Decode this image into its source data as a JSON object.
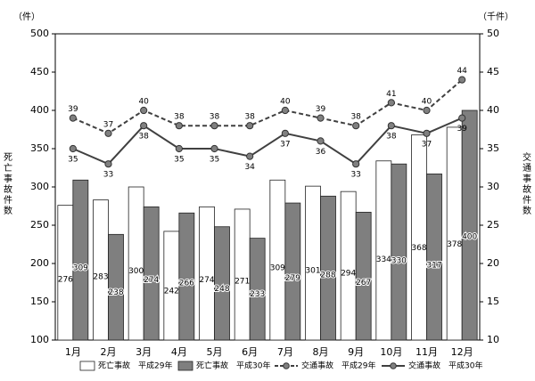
{
  "chart_data": {
    "type": "bar",
    "categories": [
      "1月",
      "2月",
      "3月",
      "4月",
      "5月",
      "6月",
      "7月",
      "8月",
      "9月",
      "10月",
      "11月",
      "12月"
    ],
    "ylabel_left": "死亡事故件数",
    "ylabel_right": "交通事故件数",
    "unit_left": "（件）",
    "unit_right": "（千件）",
    "ylim_left": [
      100,
      500
    ],
    "ylim_right": [
      10,
      50
    ],
    "yticks_left": [
      "100",
      "150",
      "200",
      "250",
      "300",
      "350",
      "400",
      "450",
      "500"
    ],
    "yticks_right": [
      "10",
      "15",
      "20",
      "25",
      "30",
      "35",
      "40",
      "45",
      "50"
    ],
    "bar_series": [
      {
        "name": "死亡事故　平成29年",
        "values": [
          276,
          283,
          300,
          242,
          274,
          271,
          309,
          301,
          294,
          334,
          368,
          378
        ]
      },
      {
        "name": "死亡事故　平成30年",
        "values": [
          309,
          238,
          274,
          266,
          248,
          233,
          279,
          288,
          267,
          330,
          317,
          400
        ]
      }
    ],
    "line_series": [
      {
        "name": "交通事故　平成29年",
        "values": [
          39,
          37,
          40,
          38,
          38,
          38,
          40,
          39,
          38,
          41,
          40,
          44
        ]
      },
      {
        "name": "交通事故　平成30年",
        "values": [
          35,
          33,
          38,
          35,
          35,
          34,
          37,
          36,
          33,
          38,
          37,
          39
        ]
      }
    ],
    "grid": false,
    "legend_position": "bottom",
    "colors": {
      "bar1": "#ffffff",
      "bar2": "#7f7f7f",
      "line": "#404040",
      "marker_fill": "#808080"
    }
  }
}
